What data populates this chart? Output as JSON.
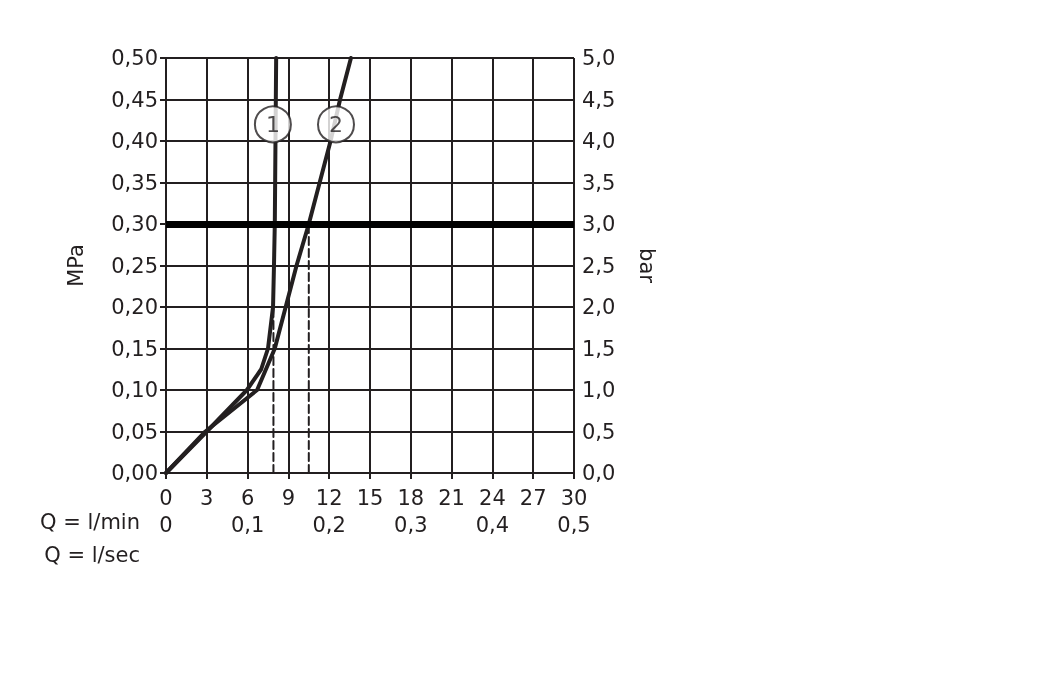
{
  "chart_data": {
    "type": "line",
    "xlabel": "Q = l/min",
    "x2label": "Q = l/sec",
    "ylabel": "MPa",
    "y2label": "bar",
    "xlim": [
      0,
      30
    ],
    "xticks": [
      0,
      3,
      6,
      9,
      12,
      15,
      18,
      21,
      24,
      27,
      30
    ],
    "x2lim": [
      0,
      0.5
    ],
    "x2ticks": [
      {
        "value": 0,
        "label": "0"
      },
      {
        "value": 0.1,
        "label": "0,1"
      },
      {
        "value": 0.2,
        "label": "0,2"
      },
      {
        "value": 0.3,
        "label": "0,3"
      },
      {
        "value": 0.4,
        "label": "0,4"
      },
      {
        "value": 0.5,
        "label": "0,5"
      }
    ],
    "ylim": [
      0,
      0.5
    ],
    "yticks": [
      {
        "value": 0,
        "label": "0,00"
      },
      {
        "value": 0.05,
        "label": "0,05"
      },
      {
        "value": 0.1,
        "label": "0,10"
      },
      {
        "value": 0.15,
        "label": "0,15"
      },
      {
        "value": 0.2,
        "label": "0,20"
      },
      {
        "value": 0.25,
        "label": "0,25"
      },
      {
        "value": 0.3,
        "label": "0,30"
      },
      {
        "value": 0.35,
        "label": "0,35"
      },
      {
        "value": 0.4,
        "label": "0,40"
      },
      {
        "value": 0.45,
        "label": "0,45"
      },
      {
        "value": 0.5,
        "label": "0,50"
      }
    ],
    "y2lim": [
      0,
      5
    ],
    "y2ticks": [
      {
        "value": 0,
        "label": "0,0"
      },
      {
        "value": 0.5,
        "label": "0,5"
      },
      {
        "value": 1,
        "label": "1,0"
      },
      {
        "value": 1.5,
        "label": "1,5"
      },
      {
        "value": 2,
        "label": "2,0"
      },
      {
        "value": 2.5,
        "label": "2,5"
      },
      {
        "value": 3,
        "label": "3,0"
      },
      {
        "value": 3.5,
        "label": "3,5"
      },
      {
        "value": 4,
        "label": "4,0"
      },
      {
        "value": 4.5,
        "label": "4,5"
      },
      {
        "value": 5,
        "label": "5,0"
      }
    ],
    "grid": true,
    "marker": "none",
    "line_style": "solid",
    "series": [
      {
        "color": "#231f20",
        "x": [
          0,
          3,
          5.95,
          7,
          7.5,
          7.87,
          7.94,
          8,
          8.1
        ],
        "values": [
          0,
          0.05,
          0.1,
          0.125,
          0.15,
          0.2,
          0.25,
          0.3,
          0.5
        ]
      },
      {
        "color": "#231f20",
        "x": [
          0,
          2.9,
          6.7,
          8,
          8.8,
          9.6,
          10.5,
          12.1,
          12.8,
          13.6
        ],
        "values": [
          0,
          0.05,
          0.1,
          0.15,
          0.2,
          0.25,
          0.3,
          0.4,
          0.45,
          0.5
        ]
      },
      {
        "color": "#231f20",
        "line_style": "dashed",
        "x": [
          7.9,
          7.9
        ],
        "values": [
          0,
          0.2
        ]
      },
      {
        "color": "#231f20",
        "line_style": "dashed",
        "x": [
          10.5,
          10.5
        ],
        "values": [
          0,
          0.3
        ]
      }
    ],
    "ref_lines": [
      {
        "axis": "y",
        "value": 0.3,
        "color": "#000000"
      }
    ],
    "annotations": [
      {
        "text": "1",
        "x": 7.86,
        "y": 0.42
      },
      {
        "text": "2",
        "x": 12.5,
        "y": 0.42
      }
    ]
  }
}
